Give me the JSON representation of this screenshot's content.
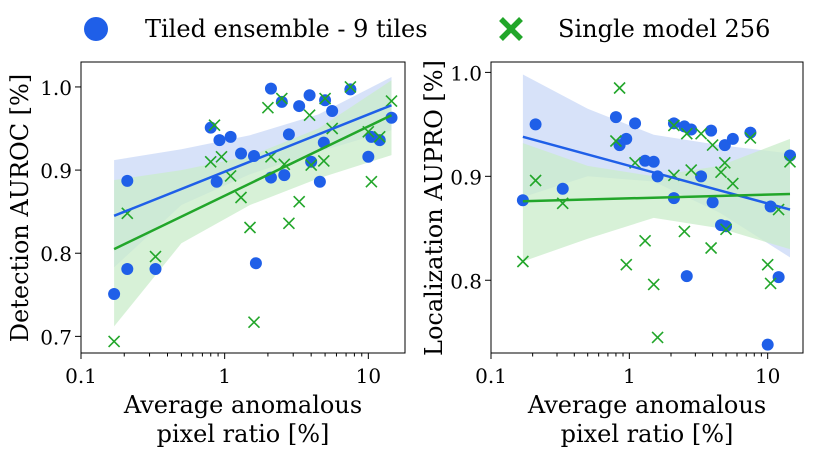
{
  "legend": [
    {
      "label": "Tiled ensemble - 9 tiles",
      "marker": "circle",
      "color": "#1f5fe8"
    },
    {
      "label": "Single model 256",
      "marker": "x",
      "color": "#22a62a"
    }
  ],
  "colors": {
    "blue": "#1f5fe8",
    "green": "#22a62a",
    "blue_band": "#c9d8f7",
    "green_band": "#c9ecc9"
  },
  "chart_data": [
    {
      "type": "scatter",
      "name": "detection",
      "xlabel_lines": [
        "Average anomalous",
        "pixel ratio [%]"
      ],
      "ylabel": "Detection AUROC [%]",
      "xscale": "log",
      "xlim": [
        0.1,
        18
      ],
      "ylim": [
        0.68,
        1.03
      ],
      "xticks": [
        {
          "v": 0.1,
          "label": "0.1"
        },
        {
          "v": 1,
          "label": "1"
        },
        {
          "v": 10,
          "label": "10"
        }
      ],
      "yticks": [
        {
          "v": 0.7,
          "label": "0.7"
        },
        {
          "v": 0.8,
          "label": "0.8"
        },
        {
          "v": 0.9,
          "label": "0.9"
        },
        {
          "v": 1.0,
          "label": "1.0"
        }
      ],
      "series": [
        {
          "name": "Tiled ensemble - 9 tiles",
          "marker": "circle",
          "color_key": "blue",
          "points": [
            [
              0.17,
              0.751
            ],
            [
              0.21,
              0.887
            ],
            [
              0.21,
              0.781
            ],
            [
              0.33,
              0.781
            ],
            [
              0.8,
              0.951
            ],
            [
              0.88,
              0.886
            ],
            [
              0.92,
              0.936
            ],
            [
              1.1,
              0.94
            ],
            [
              1.3,
              0.92
            ],
            [
              1.6,
              0.917
            ],
            [
              1.65,
              0.788
            ],
            [
              2.1,
              0.998
            ],
            [
              2.1,
              0.891
            ],
            [
              2.5,
              0.982
            ],
            [
              2.6,
              0.894
            ],
            [
              2.8,
              0.943
            ],
            [
              3.3,
              0.977
            ],
            [
              3.9,
              0.99
            ],
            [
              4.0,
              0.91
            ],
            [
              4.6,
              0.886
            ],
            [
              4.9,
              0.933
            ],
            [
              5.0,
              0.984
            ],
            [
              5.6,
              0.971
            ],
            [
              7.5,
              0.997
            ],
            [
              10,
              0.916
            ],
            [
              10.5,
              0.94
            ],
            [
              12,
              0.936
            ],
            [
              14.5,
              0.963
            ]
          ]
        },
        {
          "name": "Single model 256",
          "marker": "x",
          "color_key": "green",
          "points": [
            [
              0.17,
              0.694
            ],
            [
              0.21,
              0.848
            ],
            [
              0.33,
              0.796
            ],
            [
              0.8,
              0.91
            ],
            [
              0.85,
              0.954
            ],
            [
              0.95,
              0.916
            ],
            [
              1.1,
              0.893
            ],
            [
              1.3,
              0.867
            ],
            [
              1.5,
              0.831
            ],
            [
              1.6,
              0.717
            ],
            [
              2.0,
              0.975
            ],
            [
              2.1,
              0.916
            ],
            [
              2.5,
              0.986
            ],
            [
              2.6,
              0.907
            ],
            [
              2.8,
              0.836
            ],
            [
              3.3,
              0.862
            ],
            [
              3.9,
              0.966
            ],
            [
              4.0,
              0.906
            ],
            [
              4.9,
              0.911
            ],
            [
              5.0,
              0.986
            ],
            [
              5.6,
              0.95
            ],
            [
              7.5,
              1.0
            ],
            [
              10,
              0.946
            ],
            [
              10.5,
              0.886
            ],
            [
              12,
              0.94
            ],
            [
              14.5,
              0.983
            ]
          ]
        }
      ],
      "fits": [
        {
          "series": "Tiled ensemble - 9 tiles",
          "color_key": "blue",
          "band_key": "blue_band",
          "x": [
            0.17,
            14.5
          ],
          "y": [
            0.845,
            0.978
          ],
          "band_x": [
            0.17,
            0.5,
            1.5,
            4.5,
            14.5
          ],
          "band_lo": [
            0.783,
            0.858,
            0.895,
            0.922,
            0.948
          ],
          "band_hi": [
            0.912,
            0.925,
            0.942,
            0.967,
            1.012
          ]
        },
        {
          "series": "Single model 256",
          "color_key": "green",
          "band_key": "green_band",
          "x": [
            0.17,
            14.5
          ],
          "y": [
            0.805,
            0.966
          ],
          "band_x": [
            0.17,
            0.5,
            1.5,
            4.5,
            14.5
          ],
          "band_lo": [
            0.712,
            0.812,
            0.858,
            0.89,
            0.918
          ],
          "band_hi": [
            0.888,
            0.9,
            0.917,
            0.95,
            1.008
          ]
        }
      ]
    },
    {
      "type": "scatter",
      "name": "localization",
      "xlabel_lines": [
        "Average anomalous",
        "pixel ratio [%]"
      ],
      "ylabel": "Localization AUPRO [%]",
      "xscale": "log",
      "xlim": [
        0.1,
        18
      ],
      "ylim": [
        0.73,
        1.01
      ],
      "xticks": [
        {
          "v": 0.1,
          "label": "0.1"
        },
        {
          "v": 1,
          "label": "1"
        },
        {
          "v": 10,
          "label": "10"
        }
      ],
      "yticks": [
        {
          "v": 0.8,
          "label": "0.8"
        },
        {
          "v": 0.9,
          "label": "0.9"
        },
        {
          "v": 1.0,
          "label": "1.0"
        }
      ],
      "series": [
        {
          "name": "Tiled ensemble - 9 tiles",
          "marker": "circle",
          "color_key": "blue",
          "points": [
            [
              0.17,
              0.877
            ],
            [
              0.21,
              0.95
            ],
            [
              0.33,
              0.888
            ],
            [
              0.8,
              0.957
            ],
            [
              0.85,
              0.93
            ],
            [
              0.95,
              0.936
            ],
            [
              1.1,
              0.951
            ],
            [
              1.3,
              0.915
            ],
            [
              1.5,
              0.914
            ],
            [
              1.6,
              0.9
            ],
            [
              2.1,
              0.951
            ],
            [
              2.1,
              0.879
            ],
            [
              2.5,
              0.948
            ],
            [
              2.6,
              0.804
            ],
            [
              2.8,
              0.945
            ],
            [
              3.3,
              0.9
            ],
            [
              3.9,
              0.944
            ],
            [
              4.0,
              0.875
            ],
            [
              4.6,
              0.853
            ],
            [
              4.9,
              0.93
            ],
            [
              5.0,
              0.852
            ],
            [
              5.6,
              0.936
            ],
            [
              7.5,
              0.942
            ],
            [
              10,
              0.738
            ],
            [
              10.5,
              0.871
            ],
            [
              12,
              0.803
            ],
            [
              14.5,
              0.92
            ]
          ]
        },
        {
          "name": "Single model 256",
          "marker": "x",
          "color_key": "green",
          "points": [
            [
              0.17,
              0.818
            ],
            [
              0.21,
              0.896
            ],
            [
              0.33,
              0.874
            ],
            [
              0.8,
              0.934
            ],
            [
              0.85,
              0.985
            ],
            [
              0.95,
              0.815
            ],
            [
              1.1,
              0.913
            ],
            [
              1.3,
              0.838
            ],
            [
              1.5,
              0.796
            ],
            [
              1.6,
              0.745
            ],
            [
              2.1,
              0.949
            ],
            [
              2.1,
              0.901
            ],
            [
              2.5,
              0.847
            ],
            [
              2.6,
              0.941
            ],
            [
              2.8,
              0.906
            ],
            [
              3.3,
              0.941
            ],
            [
              3.9,
              0.831
            ],
            [
              4.0,
              0.93
            ],
            [
              4.6,
              0.904
            ],
            [
              4.9,
              0.913
            ],
            [
              5.0,
              0.849
            ],
            [
              5.6,
              0.893
            ],
            [
              7.5,
              0.937
            ],
            [
              10,
              0.815
            ],
            [
              10.5,
              0.797
            ],
            [
              12,
              0.868
            ],
            [
              14.5,
              0.914
            ]
          ]
        }
      ],
      "fits": [
        {
          "series": "Tiled ensemble - 9 tiles",
          "color_key": "blue",
          "band_key": "blue_band",
          "x": [
            0.17,
            14.5
          ],
          "y": [
            0.938,
            0.868
          ],
          "band_x": [
            0.17,
            0.5,
            1.5,
            4.5,
            14.5
          ],
          "band_lo": [
            0.88,
            0.9,
            0.895,
            0.865,
            0.822
          ],
          "band_hi": [
            0.998,
            0.965,
            0.94,
            0.93,
            0.922
          ]
        },
        {
          "series": "Single model 256",
          "color_key": "green",
          "band_key": "green_band",
          "x": [
            0.17,
            14.5
          ],
          "y": [
            0.876,
            0.883
          ],
          "band_x": [
            0.17,
            0.5,
            1.5,
            4.5,
            14.5
          ],
          "band_lo": [
            0.818,
            0.84,
            0.86,
            0.85,
            0.83
          ],
          "band_hi": [
            0.932,
            0.91,
            0.9,
            0.91,
            0.936
          ]
        }
      ]
    }
  ]
}
